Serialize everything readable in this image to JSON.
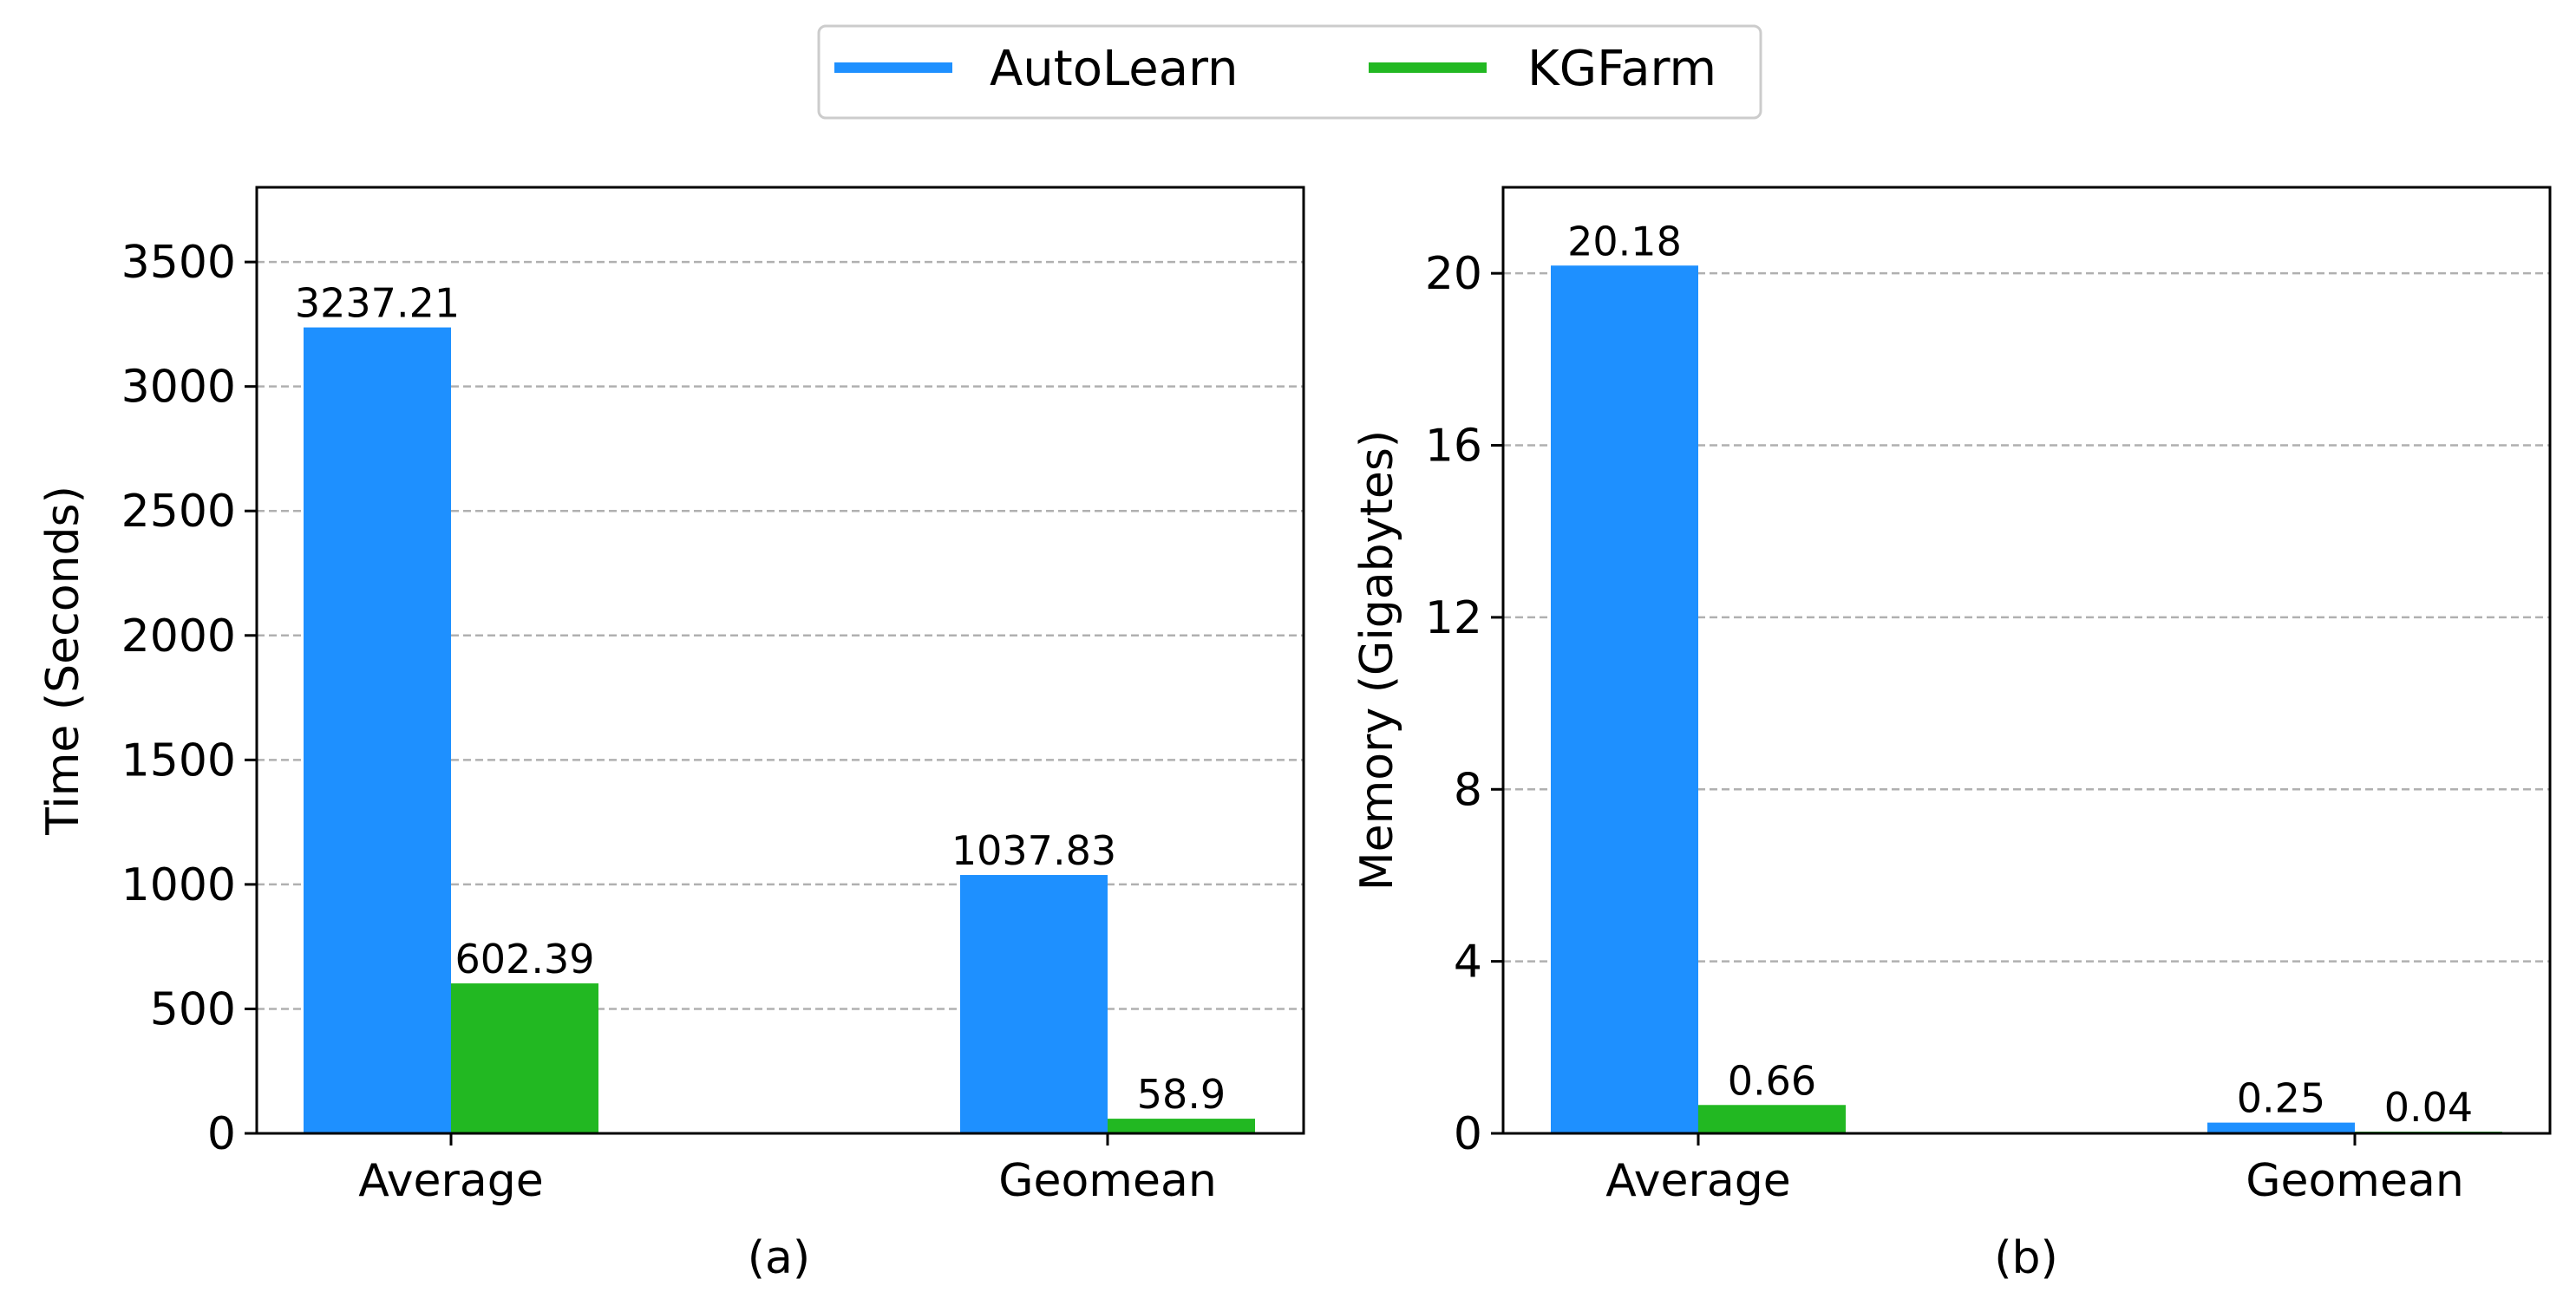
{
  "legend": {
    "items": [
      {
        "label": "AutoLearn",
        "color": "#1E90FF"
      },
      {
        "label": "KGFarm",
        "color": "#22B822"
      }
    ],
    "placement": "top-center"
  },
  "chart_data": [
    {
      "type": "bar",
      "panel_label": "(a)",
      "categories": [
        "Average",
        "Geomean"
      ],
      "series": [
        {
          "name": "AutoLearn",
          "values": [
            3237.21,
            1037.83
          ],
          "labels": [
            "3237.21",
            "1037.83"
          ],
          "color": "#1E90FF"
        },
        {
          "name": "KGFarm",
          "values": [
            602.39,
            58.9
          ],
          "labels": [
            "602.39",
            "58.9"
          ],
          "color": "#22B822"
        }
      ],
      "title": "",
      "xlabel": "",
      "ylabel": "Time (Seconds)",
      "ylim": [
        0,
        3800
      ],
      "yticks": [
        0,
        500,
        1000,
        1500,
        2000,
        2500,
        3000,
        3500
      ],
      "grid": "horizontal dashed"
    },
    {
      "type": "bar",
      "panel_label": "(b)",
      "categories": [
        "Average",
        "Geomean"
      ],
      "series": [
        {
          "name": "AutoLearn",
          "values": [
            20.18,
            0.25
          ],
          "labels": [
            "20.18",
            "0.25"
          ],
          "color": "#1E90FF"
        },
        {
          "name": "KGFarm",
          "values": [
            0.66,
            0.04
          ],
          "labels": [
            "0.66",
            "0.04"
          ],
          "color": "#22B822"
        }
      ],
      "title": "",
      "xlabel": "",
      "ylabel": "Memory (Gigabytes)",
      "ylim": [
        0,
        22
      ],
      "yticks": [
        0,
        4,
        8,
        12,
        16,
        20
      ],
      "grid": "horizontal dashed"
    }
  ]
}
